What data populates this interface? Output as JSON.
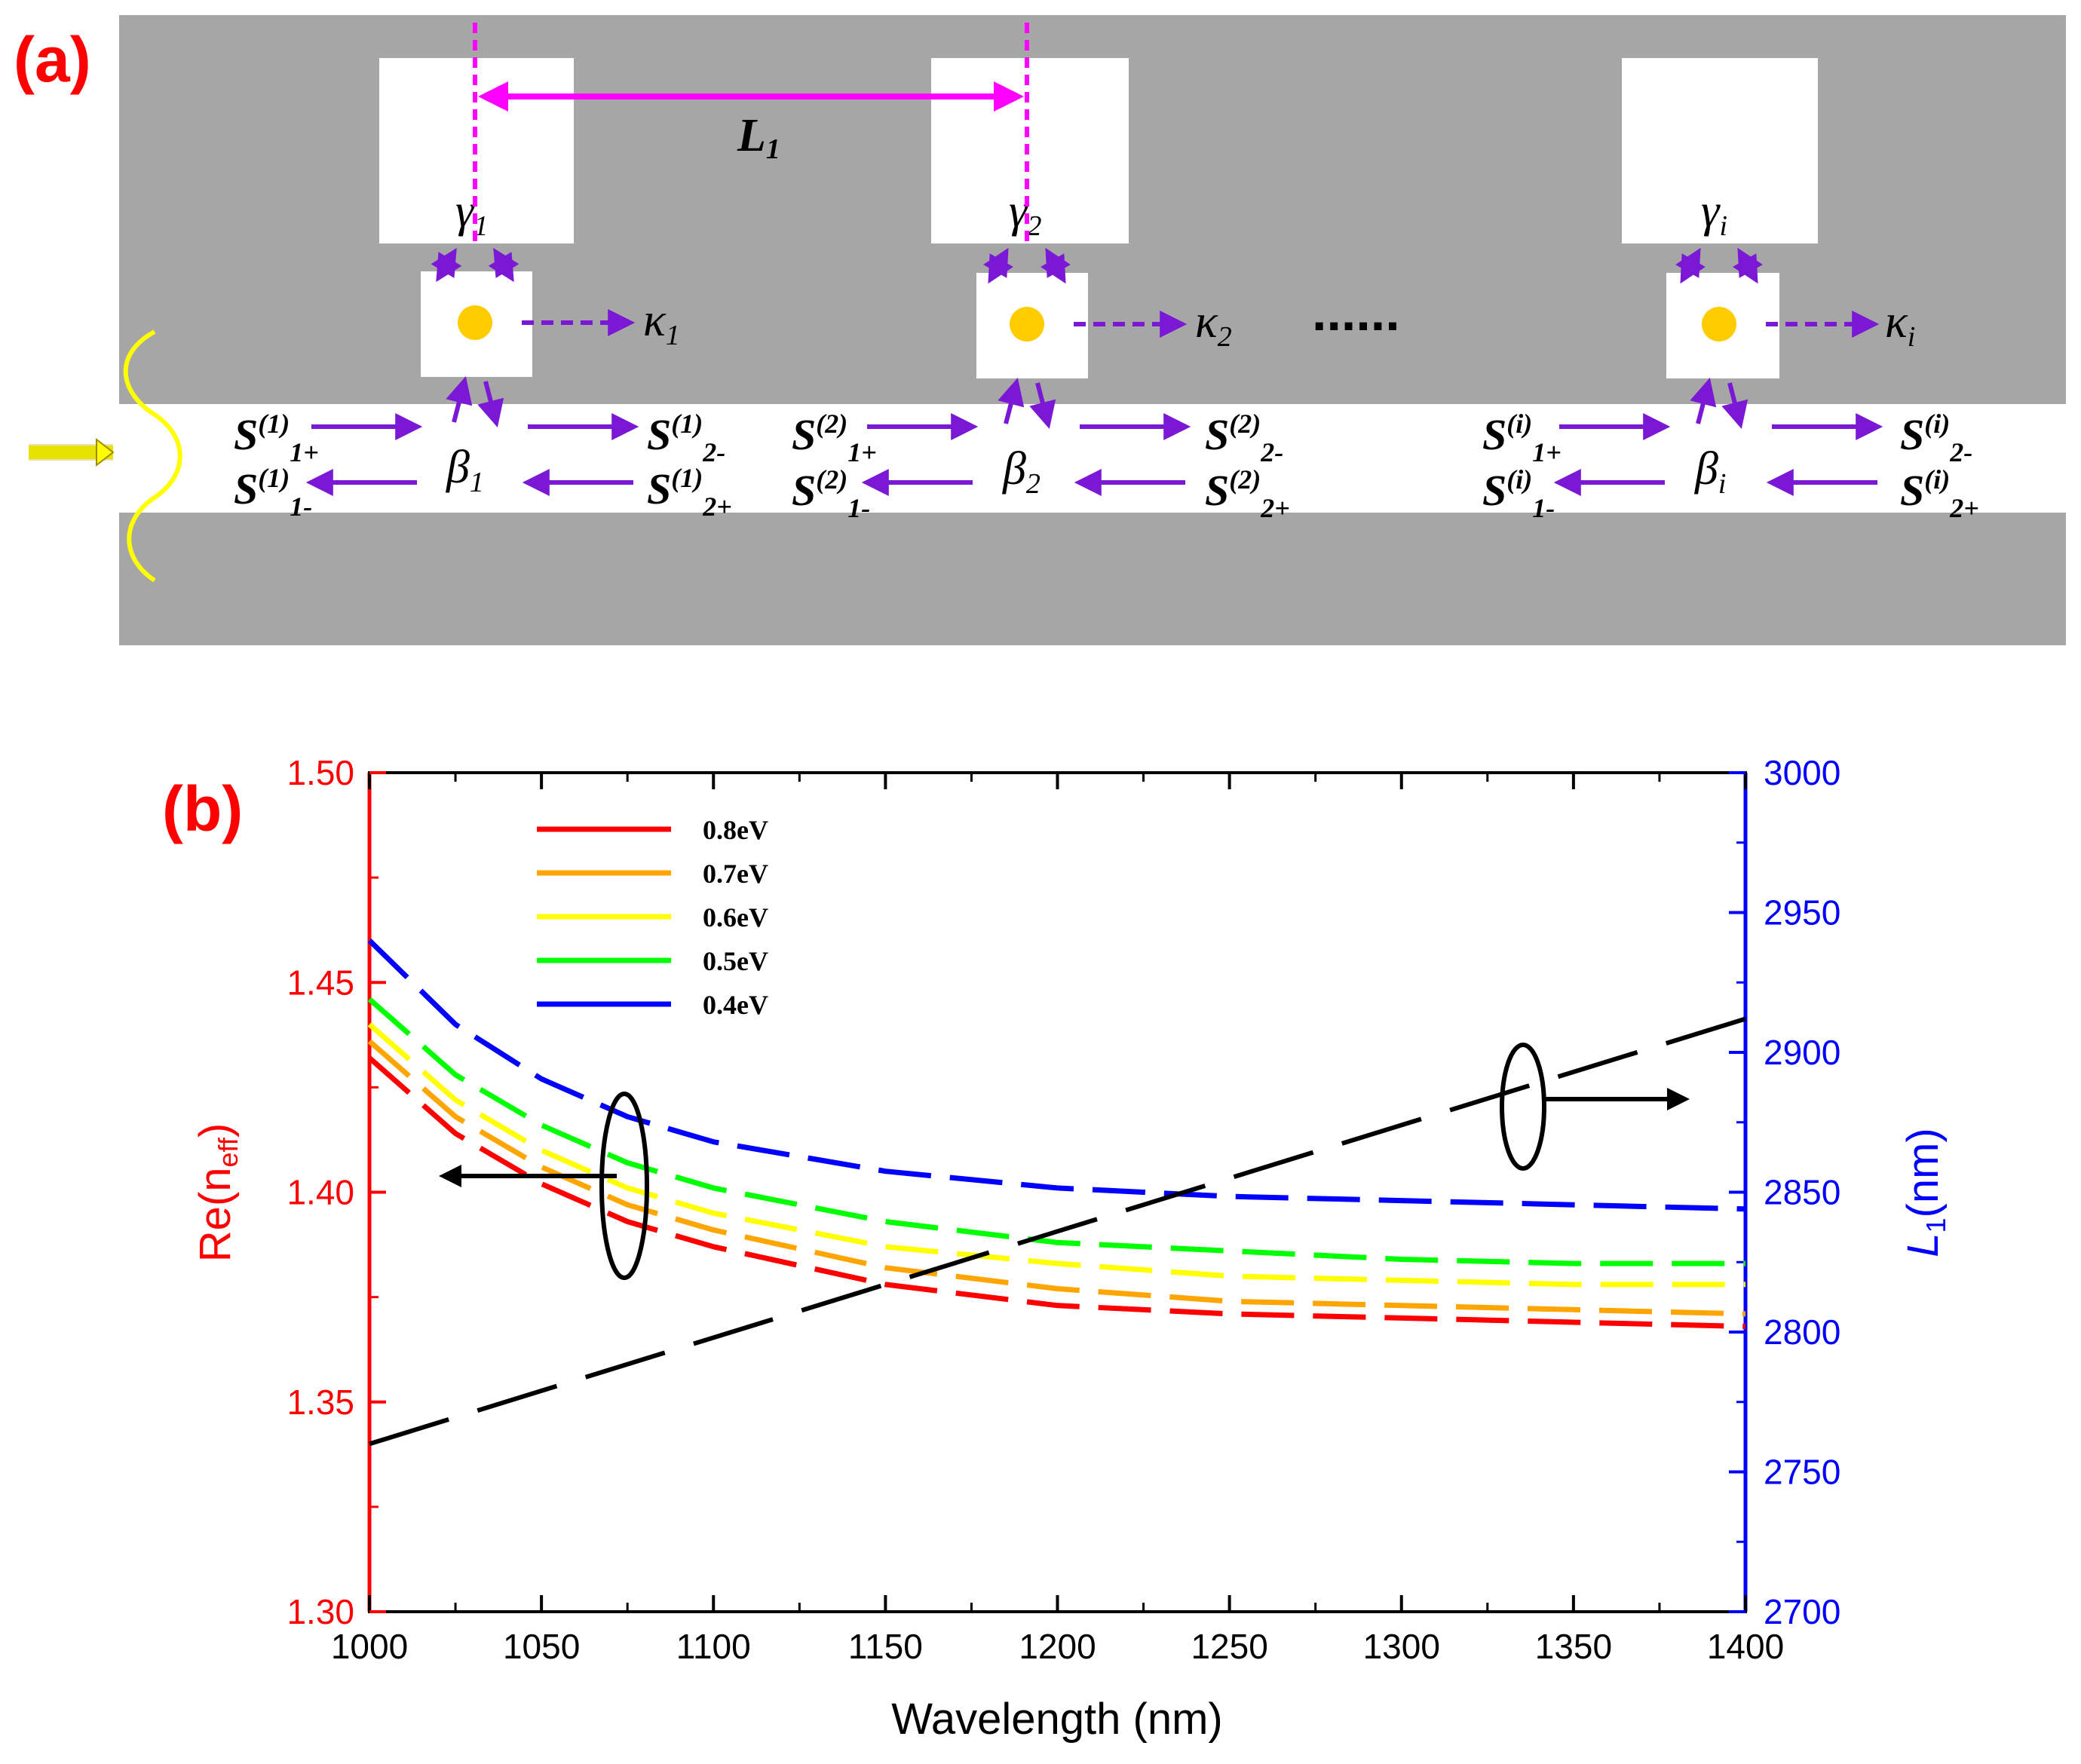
{
  "panel_a": {
    "label": "(a)",
    "cavity_spacing_label": "L",
    "cavity_spacing_sub": "1",
    "dots": "......",
    "units": [
      {
        "gamma": "γ",
        "gamma_sub": "1",
        "kappa": "κ",
        "kappa_sub": "1",
        "beta": "β",
        "beta_sub": "1",
        "idx": "(1)"
      },
      {
        "gamma": "γ",
        "gamma_sub": "2",
        "kappa": "κ",
        "kappa_sub": "2",
        "beta": "β",
        "beta_sub": "2",
        "idx": "(2)"
      },
      {
        "gamma": "γ",
        "gamma_sub": "i",
        "kappa": "κ",
        "kappa_sub": "i",
        "beta": "β",
        "beta_sub": "i",
        "idx": "(i)"
      }
    ],
    "s_letter": "S",
    "s_subs": {
      "in_fwd": "1+",
      "in_back": "1-",
      "out_fwd": "2-",
      "out_back": "2+"
    }
  },
  "chart_data": {
    "label": "(b)",
    "type": "line",
    "xlabel": "Wavelength (nm)",
    "ylabel_left": "Re(n",
    "ylabel_left_sub": "eff",
    "ylabel_left_close": ")",
    "ylabel_right": "L",
    "ylabel_right_sub": "1",
    "ylabel_right_unit": "(nm)",
    "xlim": [
      1000,
      1400
    ],
    "ylim_left": [
      1.3,
      1.5
    ],
    "ylim_right": [
      2700,
      3000
    ],
    "x_ticks": [
      "1000",
      "1050",
      "1100",
      "1150",
      "1200",
      "1250",
      "1300",
      "1350",
      "1400"
    ],
    "y_left_ticks": [
      "1.30",
      "1.35",
      "1.40",
      "1.45",
      "1.50"
    ],
    "y_right_ticks": [
      "2700",
      "2750",
      "2800",
      "2850",
      "2900",
      "2950",
      "3000"
    ],
    "series": [
      {
        "name": "0.8eV",
        "color": "#ff0000",
        "axis": "left",
        "x": [
          1000,
          1025,
          1050,
          1075,
          1100,
          1150,
          1200,
          1250,
          1300,
          1350,
          1400
        ],
        "values": [
          1.432,
          1.414,
          1.402,
          1.393,
          1.387,
          1.378,
          1.373,
          1.371,
          1.37,
          1.369,
          1.368
        ]
      },
      {
        "name": "0.7eV",
        "color": "#ffa500",
        "axis": "left",
        "x": [
          1000,
          1025,
          1050,
          1075,
          1100,
          1150,
          1200,
          1250,
          1300,
          1350,
          1400
        ],
        "values": [
          1.436,
          1.418,
          1.406,
          1.397,
          1.391,
          1.382,
          1.377,
          1.374,
          1.373,
          1.372,
          1.371
        ]
      },
      {
        "name": "0.6eV",
        "color": "#ffff00",
        "axis": "left",
        "x": [
          1000,
          1025,
          1050,
          1075,
          1100,
          1150,
          1200,
          1250,
          1300,
          1350,
          1400
        ],
        "values": [
          1.44,
          1.422,
          1.41,
          1.401,
          1.395,
          1.387,
          1.383,
          1.38,
          1.379,
          1.378,
          1.378
        ]
      },
      {
        "name": "0.5eV",
        "color": "#00ff00",
        "axis": "left",
        "x": [
          1000,
          1025,
          1050,
          1075,
          1100,
          1150,
          1200,
          1250,
          1300,
          1350,
          1400
        ],
        "values": [
          1.446,
          1.428,
          1.416,
          1.407,
          1.401,
          1.393,
          1.388,
          1.386,
          1.384,
          1.383,
          1.383
        ]
      },
      {
        "name": "0.4eV",
        "color": "#0000ff",
        "axis": "left",
        "x": [
          1000,
          1025,
          1050,
          1075,
          1100,
          1150,
          1200,
          1250,
          1300,
          1350,
          1400
        ],
        "values": [
          1.46,
          1.44,
          1.427,
          1.418,
          1.412,
          1.405,
          1.401,
          1.399,
          1.398,
          1.397,
          1.396
        ]
      },
      {
        "name": "L1",
        "color": "#000000",
        "axis": "right",
        "x": [
          1000,
          1400
        ],
        "values": [
          2760,
          2912
        ]
      }
    ],
    "legend_position": "top-left"
  }
}
